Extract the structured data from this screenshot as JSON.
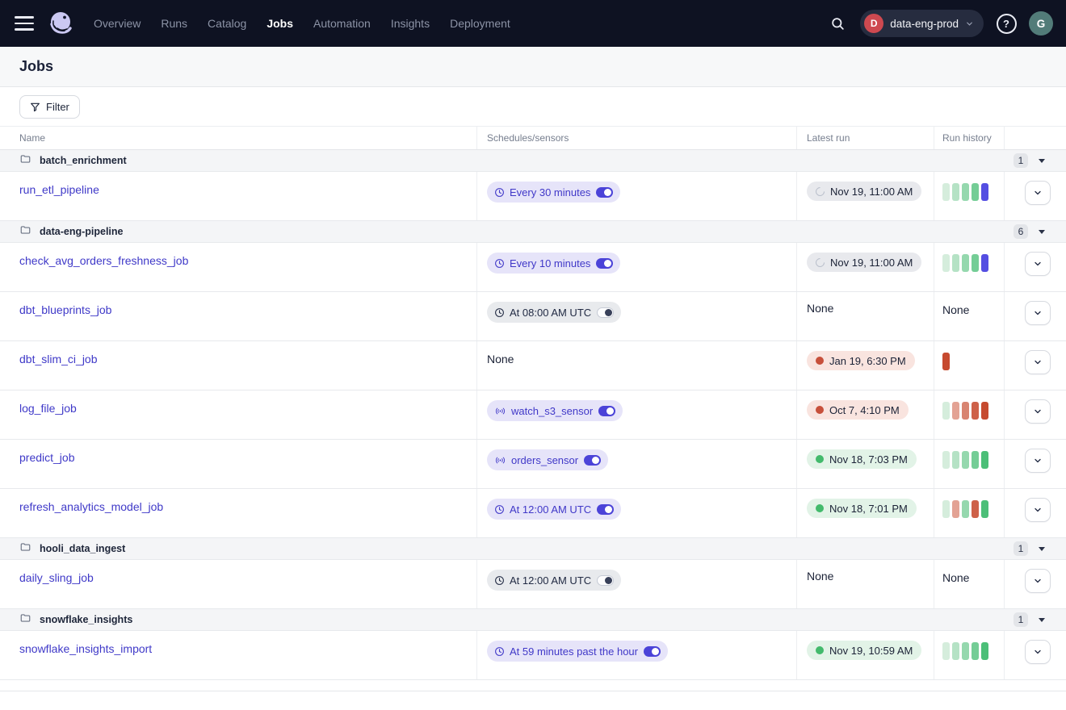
{
  "nav": {
    "items": [
      {
        "label": "Overview",
        "active": false
      },
      {
        "label": "Runs",
        "active": false
      },
      {
        "label": "Catalog",
        "active": false
      },
      {
        "label": "Jobs",
        "active": true
      },
      {
        "label": "Automation",
        "active": false
      },
      {
        "label": "Insights",
        "active": false
      },
      {
        "label": "Deployment",
        "active": false
      }
    ],
    "deployment": {
      "badge": "D",
      "name": "data-eng-prod"
    },
    "help_label": "?",
    "avatar_initial": "G"
  },
  "page": {
    "title": "Jobs"
  },
  "toolbar": {
    "filter_label": "Filter"
  },
  "table": {
    "headers": {
      "name": "Name",
      "schedules": "Schedules/sensors",
      "latest_run": "Latest run",
      "run_history": "Run history"
    },
    "none_label": "None",
    "history_palette": {
      "success": [
        "#D5EDDC",
        "#B5E2C5",
        "#95D8AE",
        "#74CD96",
        "#4CBF78"
      ],
      "failure": [
        "#EFC5BC",
        "#E3A294",
        "#D88471",
        "#CE6149",
        "#C64A2F"
      ],
      "running": "#544EE2"
    },
    "groups": [
      {
        "name": "batch_enrichment",
        "count": "1",
        "jobs": [
          {
            "name": "run_etl_pipeline",
            "trigger": {
              "kind": "schedule",
              "label": "Every 30 minutes",
              "enabled": true
            },
            "latest_run": {
              "status": "in_progress",
              "label": "Nov 19, 11:00 AM"
            },
            "history": [
              "s0",
              "s1",
              "s2",
              "s3",
              "r"
            ]
          }
        ]
      },
      {
        "name": "data-eng-pipeline",
        "count": "6",
        "jobs": [
          {
            "name": "check_avg_orders_freshness_job",
            "trigger": {
              "kind": "schedule",
              "label": "Every 10 minutes",
              "enabled": true
            },
            "latest_run": {
              "status": "in_progress",
              "label": "Nov 19, 11:00 AM"
            },
            "history": [
              "s0",
              "s1",
              "s2",
              "s3",
              "r"
            ]
          },
          {
            "name": "dbt_blueprints_job",
            "trigger": {
              "kind": "schedule",
              "label": "At 08:00 AM UTC",
              "enabled": false
            },
            "latest_run": {
              "status": "none"
            },
            "history": null
          },
          {
            "name": "dbt_slim_ci_job",
            "trigger": {
              "kind": "none"
            },
            "latest_run": {
              "status": "failure",
              "label": "Jan 19, 6:30 PM"
            },
            "history": [
              "f4"
            ]
          },
          {
            "name": "log_file_job",
            "trigger": {
              "kind": "sensor",
              "label": "watch_s3_sensor",
              "enabled": true
            },
            "latest_run": {
              "status": "failure",
              "label": "Oct 7, 4:10 PM"
            },
            "history": [
              "s0",
              "f1",
              "f2",
              "f3",
              "f4"
            ]
          },
          {
            "name": "predict_job",
            "trigger": {
              "kind": "sensor",
              "label": "orders_sensor",
              "enabled": true
            },
            "latest_run": {
              "status": "success",
              "label": "Nov 18, 7:03 PM"
            },
            "history": [
              "s0",
              "s1",
              "s2",
              "s3",
              "s4"
            ]
          },
          {
            "name": "refresh_analytics_model_job",
            "trigger": {
              "kind": "schedule",
              "label": "At 12:00 AM UTC",
              "enabled": true
            },
            "latest_run": {
              "status": "success",
              "label": "Nov 18, 7:01 PM"
            },
            "history": [
              "s0",
              "f1",
              "s2",
              "f3",
              "s4"
            ]
          }
        ]
      },
      {
        "name": "hooli_data_ingest",
        "count": "1",
        "jobs": [
          {
            "name": "daily_sling_job",
            "trigger": {
              "kind": "schedule",
              "label": "At 12:00 AM UTC",
              "enabled": false
            },
            "latest_run": {
              "status": "none"
            },
            "history": null
          }
        ]
      },
      {
        "name": "snowflake_insights",
        "count": "1",
        "jobs": [
          {
            "name": "snowflake_insights_import",
            "trigger": {
              "kind": "schedule",
              "label": "At 59 minutes past the hour",
              "enabled": true
            },
            "latest_run": {
              "status": "success",
              "label": "Nov 19, 10:59 AM"
            },
            "history": [
              "s0",
              "s1",
              "s2",
              "s3",
              "s4"
            ]
          }
        ]
      }
    ]
  },
  "colors": {
    "accent_blurple": "#4B43D8",
    "nav_background": "#0E1222",
    "success_green": "#43BA6C",
    "failure_red": "#C7503B",
    "running_blue": "#544EE2",
    "deployment_badge_red": "#CE4950",
    "avatar_teal": "#527C79"
  }
}
